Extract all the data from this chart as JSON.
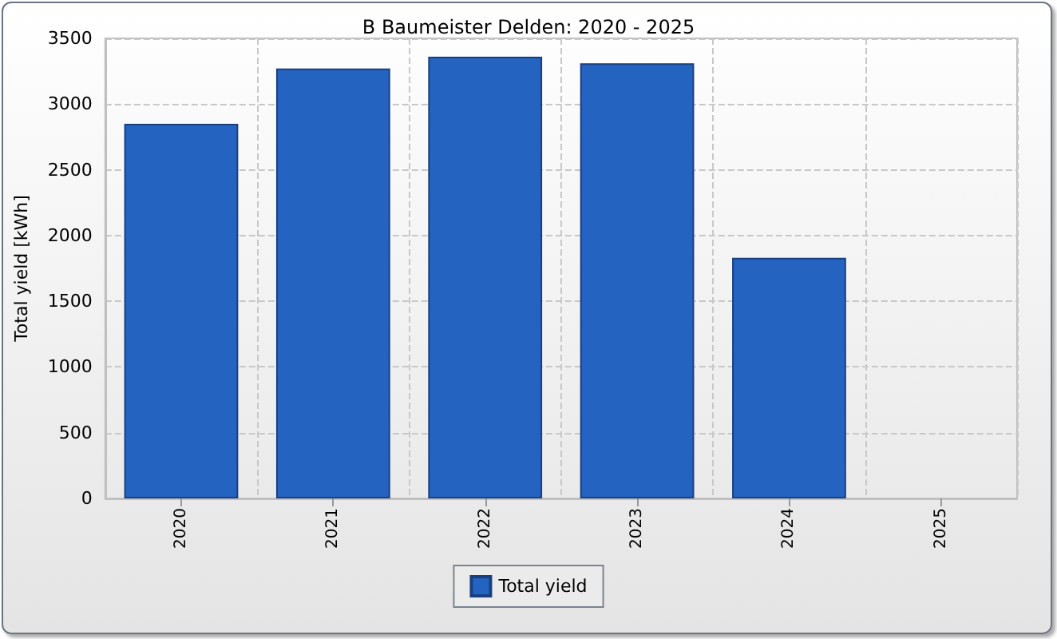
{
  "chart_data": {
    "type": "bar",
    "title": "B Baumeister Delden: 2020 - 2025",
    "ylabel": "Total yield [kWh]",
    "categories": [
      "2020",
      "2021",
      "2022",
      "2023",
      "2024",
      "2025"
    ],
    "series": [
      {
        "name": "Total yield",
        "color": "#2563c0",
        "values": [
          2850,
          3270,
          3360,
          3310,
          1830,
          null
        ]
      }
    ],
    "ylim": [
      0,
      3500
    ],
    "yticks": [
      0,
      500,
      1000,
      1500,
      2000,
      2500,
      3000,
      3500
    ],
    "grid": true,
    "legend": "bottom"
  }
}
